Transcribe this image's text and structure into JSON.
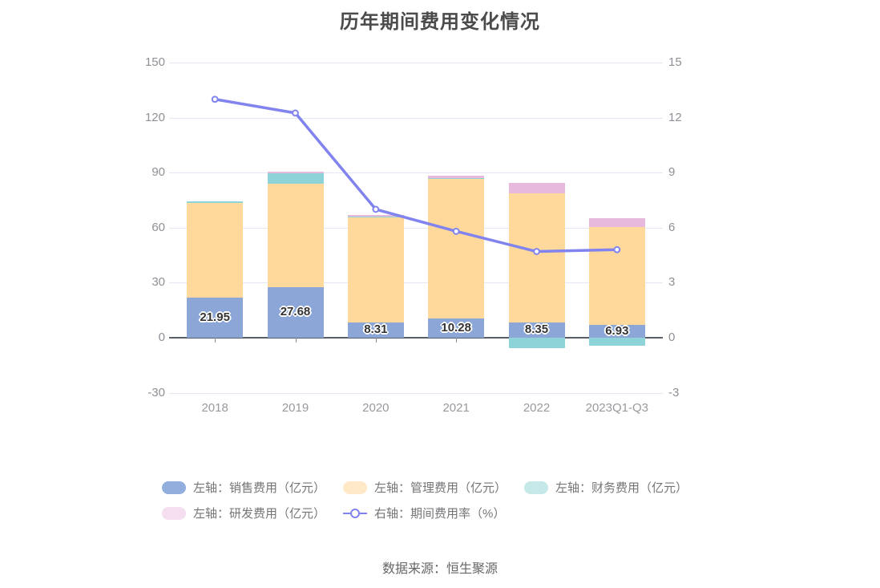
{
  "title": "历年期间费用变化情况",
  "source": "数据来源：恒生聚源",
  "chart_data": {
    "type": "bar",
    "subtype": "stacked-bars-with-line",
    "title": "历年期间费用变化情况",
    "categories": [
      "2018",
      "2019",
      "2020",
      "2021",
      "2022",
      "2023Q1-Q3"
    ],
    "left_axis": {
      "min": -30,
      "max": 150,
      "ticks": [
        150,
        120,
        90,
        60,
        30,
        0,
        -30
      ]
    },
    "right_axis": {
      "min": -3,
      "max": 15,
      "ticks": [
        15,
        12,
        9,
        6,
        3,
        0,
        -3
      ]
    },
    "grid": true,
    "legend_position": "bottom",
    "series": [
      {
        "name": "左轴：销售费用（亿元）",
        "type": "bar",
        "axis": "left",
        "color": "#8ca7d7",
        "legend_color": "#92aedd",
        "values": [
          21.95,
          27.68,
          8.31,
          10.28,
          8.35,
          6.93
        ],
        "show_labels": true
      },
      {
        "name": "左轴：管理费用（亿元）",
        "type": "bar",
        "axis": "left",
        "color": "#ffd99c",
        "legend_color": "#ffe9c9",
        "values": [
          51.6,
          56.2,
          57.2,
          76.3,
          70.5,
          53.3
        ]
      },
      {
        "name": "左轴：财务费用（亿元）",
        "type": "bar",
        "axis": "left",
        "color": "#8ed3d8",
        "legend_color": "#c5e9e8",
        "values": [
          0.7,
          5.8,
          0.5,
          0.6,
          -5.7,
          -4.2
        ]
      },
      {
        "name": "左轴：研发费用（亿元）",
        "type": "bar",
        "axis": "left",
        "color": "#e7badd",
        "legend_color": "#f4def0",
        "values": [
          0,
          0.7,
          0.9,
          1.2,
          5.4,
          5.1
        ]
      },
      {
        "name": "右轴：期间费用率（%）",
        "type": "line",
        "axis": "right",
        "color": "#8183ee",
        "values": [
          13.0,
          12.25,
          7.0,
          5.8,
          4.7,
          4.8
        ]
      }
    ],
    "bar_value_labels": [
      "21.95",
      "27.68",
      "8.31",
      "10.28",
      "8.35",
      "6.93"
    ]
  }
}
